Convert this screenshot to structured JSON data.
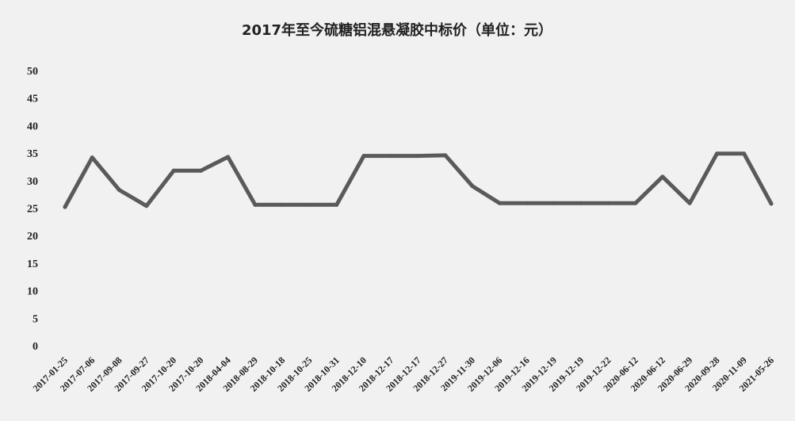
{
  "chart_data": {
    "type": "line",
    "title": "2017年至今硫糖铝混悬凝胶中标价（单位：元）",
    "xlabel": "",
    "ylabel": "",
    "ylim": [
      0,
      50
    ],
    "yticks": [
      0,
      5,
      10,
      15,
      20,
      25,
      30,
      35,
      40,
      45,
      50
    ],
    "grid": false,
    "legend": "none",
    "line_color": "#5a5a5a",
    "categories": [
      "2017-01-25",
      "2017-07-06",
      "2017-09-08",
      "2017-09-27",
      "2017-10-20",
      "2017-10-20",
      "2018-04-04",
      "2018-08-29",
      "2018-10-18",
      "2018-10-25",
      "2018-10-31",
      "2018-12-10",
      "2018-12-17",
      "2018-12-17",
      "2018-12-27",
      "2019-11-30",
      "2019-12-06",
      "2019-12-16",
      "2019-12-19",
      "2019-12-19",
      "2019-12-22",
      "2020-06-12",
      "2020-06-12",
      "2020-06-29",
      "2020-09-28",
      "2020-11-09",
      "2021-05-26"
    ],
    "series": [
      {
        "values": [
          25.2,
          34.2,
          28.3,
          25.4,
          31.8,
          31.8,
          34.3,
          25.6,
          25.6,
          25.6,
          25.6,
          34.5,
          34.5,
          34.5,
          34.6,
          29.0,
          25.9,
          25.9,
          25.9,
          25.9,
          25.9,
          25.9,
          30.7,
          25.9,
          34.9,
          34.9,
          25.8
        ]
      }
    ]
  }
}
